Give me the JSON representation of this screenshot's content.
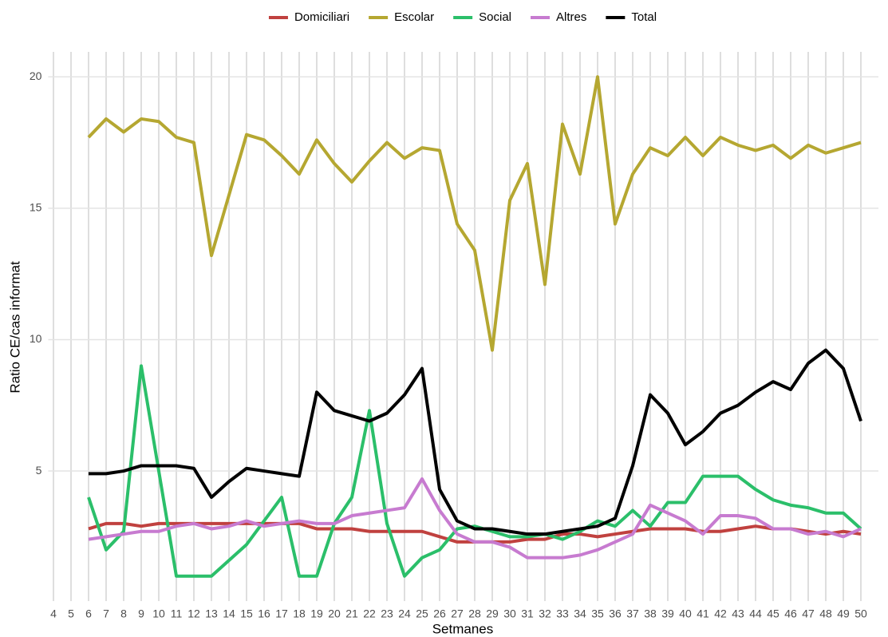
{
  "chart_data": {
    "type": "line",
    "x_label": "Setmanes",
    "y_label": "Ratio CE/cas informat",
    "x": [
      6,
      7,
      8,
      9,
      10,
      11,
      12,
      13,
      14,
      15,
      16,
      17,
      18,
      19,
      20,
      21,
      22,
      23,
      24,
      25,
      26,
      27,
      28,
      29,
      30,
      31,
      32,
      33,
      34,
      35,
      36,
      37,
      38,
      39,
      40,
      41,
      42,
      43,
      44,
      45,
      46,
      47,
      48,
      49,
      50
    ],
    "series": [
      {
        "name": "Domiciliari",
        "color": "#c0413f",
        "values": [
          2.8,
          3.0,
          3.0,
          2.9,
          3.0,
          3.0,
          3.0,
          3.0,
          3.0,
          3.0,
          3.0,
          3.0,
          3.0,
          2.8,
          2.8,
          2.8,
          2.7,
          2.7,
          2.7,
          2.7,
          2.5,
          2.3,
          2.3,
          2.3,
          2.3,
          2.4,
          2.4,
          2.6,
          2.6,
          2.5,
          2.6,
          2.7,
          2.8,
          2.8,
          2.8,
          2.7,
          2.7,
          2.8,
          2.9,
          2.8,
          2.8,
          2.7,
          2.6,
          2.7,
          2.6
        ]
      },
      {
        "name": "Escolar",
        "color": "#b5a731",
        "values": [
          17.7,
          18.4,
          17.9,
          18.4,
          18.3,
          17.7,
          17.5,
          13.2,
          15.5,
          17.8,
          17.6,
          17.0,
          16.3,
          17.6,
          16.7,
          16.0,
          16.8,
          17.5,
          16.9,
          17.3,
          17.2,
          14.4,
          13.4,
          9.6,
          15.3,
          16.7,
          12.1,
          18.2,
          16.3,
          20.0,
          14.4,
          16.3,
          17.3,
          17.0,
          17.7,
          17.0,
          17.7,
          17.4,
          17.2,
          17.4,
          16.9,
          17.4,
          17.1,
          17.3,
          17.5
        ]
      },
      {
        "name": "Social",
        "color": "#2bbf6a",
        "values": [
          4.0,
          2.0,
          2.7,
          9.0,
          5.0,
          1.0,
          1.0,
          1.0,
          1.6,
          2.2,
          3.1,
          4.0,
          1.0,
          1.0,
          3.0,
          4.0,
          7.3,
          3.0,
          1.0,
          1.7,
          2.0,
          2.8,
          2.9,
          2.7,
          2.5,
          2.5,
          2.6,
          2.4,
          2.7,
          3.1,
          2.9,
          3.5,
          2.9,
          3.8,
          3.8,
          4.8,
          4.8,
          4.8,
          4.3,
          3.9,
          3.7,
          3.6,
          3.4,
          3.4,
          2.8
        ]
      },
      {
        "name": "Altres",
        "color": "#c77bd0",
        "values": [
          2.4,
          2.5,
          2.6,
          2.7,
          2.7,
          2.9,
          3.0,
          2.8,
          2.9,
          3.1,
          2.9,
          3.0,
          3.1,
          3.0,
          3.0,
          3.3,
          3.4,
          3.5,
          3.6,
          4.7,
          3.5,
          2.6,
          2.3,
          2.3,
          2.1,
          1.7,
          1.7,
          1.7,
          1.8,
          2.0,
          2.3,
          2.6,
          3.7,
          3.4,
          3.1,
          2.6,
          3.3,
          3.3,
          3.2,
          2.8,
          2.8,
          2.6,
          2.7,
          2.5,
          2.8
        ]
      },
      {
        "name": "Total",
        "color": "#000000",
        "values": [
          4.9,
          4.9,
          5.0,
          5.2,
          5.2,
          5.2,
          5.1,
          4.0,
          4.6,
          5.1,
          5.0,
          4.9,
          4.8,
          8.0,
          7.3,
          7.1,
          6.9,
          7.2,
          7.9,
          8.9,
          4.3,
          3.1,
          2.8,
          2.8,
          2.7,
          2.6,
          2.6,
          2.7,
          2.8,
          2.9,
          3.2,
          5.2,
          7.9,
          7.2,
          6.0,
          6.5,
          7.2,
          7.5,
          8.0,
          8.4,
          8.1,
          9.1,
          9.6,
          8.9,
          6.9
        ]
      }
    ],
    "xlim": [
      3.7,
      51.0
    ],
    "xticks": [
      4,
      5,
      6,
      7,
      8,
      9,
      10,
      11,
      12,
      13,
      14,
      15,
      16,
      17,
      18,
      19,
      20,
      21,
      22,
      23,
      24,
      25,
      26,
      27,
      28,
      29,
      30,
      31,
      32,
      33,
      34,
      35,
      36,
      37,
      38,
      39,
      40,
      41,
      42,
      43,
      44,
      45,
      46,
      47,
      48,
      49,
      50
    ],
    "ylim": [
      0.05,
      20.95
    ],
    "yticks": [
      5,
      10,
      15,
      20
    ],
    "grid": true,
    "legend": "top"
  }
}
